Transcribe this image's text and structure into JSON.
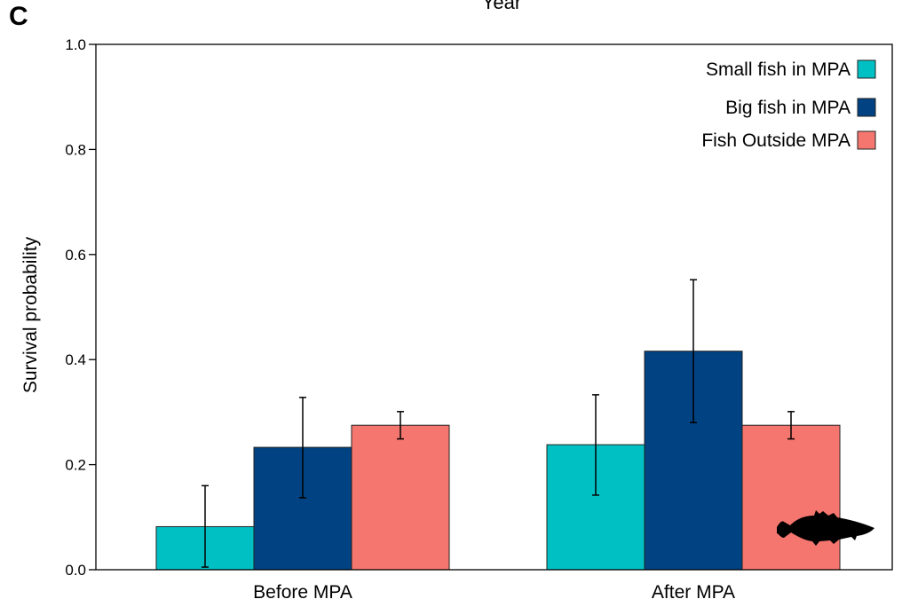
{
  "panel_label": "C",
  "colors": {
    "small_fish": "#00c0c4",
    "big_fish": "#004282",
    "outside": "#f5766e",
    "axis": "#000000",
    "silhouette": "#000000"
  },
  "icons": [
    "fish-silhouette-icon"
  ],
  "chart_data": {
    "type": "bar",
    "title": "Year",
    "xlabel": "",
    "ylabel": "Survival probability",
    "ylim": [
      0,
      1.0
    ],
    "yticks": [
      0.0,
      0.2,
      0.4,
      0.6,
      0.8,
      1.0
    ],
    "ytick_labels": [
      "0.0",
      "0.2",
      "0.4",
      "0.6",
      "0.8",
      "1.0"
    ],
    "grid": false,
    "legend_position": "top-right",
    "categories": [
      "Before MPA",
      "After MPA"
    ],
    "series": [
      {
        "name": "Small fish in MPA",
        "color": "#00c0c4",
        "values": [
          0.082,
          0.238
        ],
        "err_low": [
          0.005,
          0.142
        ],
        "err_high": [
          0.16,
          0.333
        ]
      },
      {
        "name": "Big fish in MPA",
        "color": "#004282",
        "values": [
          0.233,
          0.416
        ],
        "err_low": [
          0.137,
          0.28
        ],
        "err_high": [
          0.328,
          0.552
        ]
      },
      {
        "name": "Fish Outside MPA",
        "color": "#f5766e",
        "values": [
          0.275,
          0.275
        ],
        "err_low": [
          0.249,
          0.249
        ],
        "err_high": [
          0.301,
          0.301
        ]
      }
    ]
  }
}
